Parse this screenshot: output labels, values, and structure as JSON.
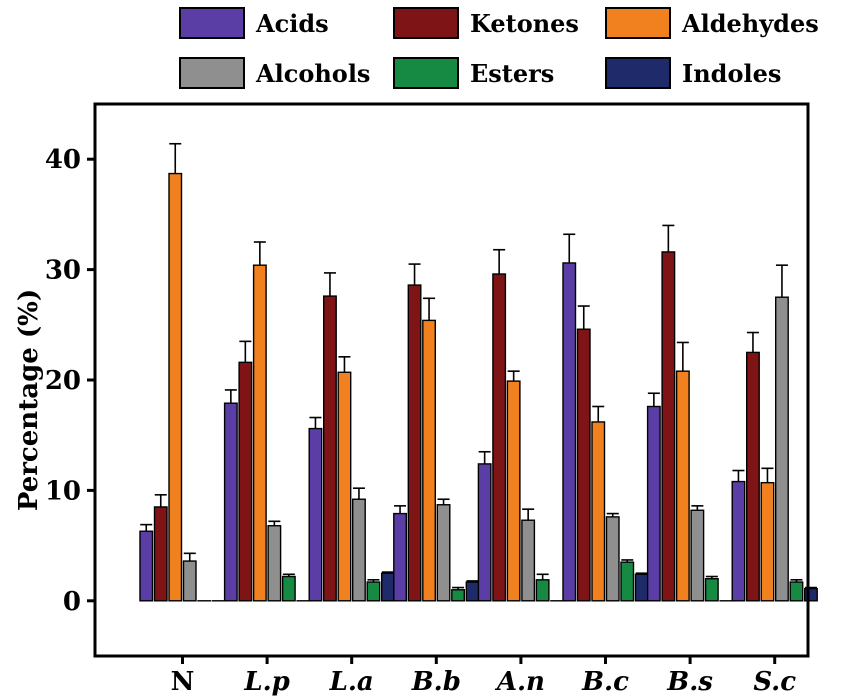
{
  "chart_data": {
    "type": "bar",
    "title": "",
    "xlabel": "",
    "ylabel": "Percentage (%)",
    "ylim": [
      -5,
      45
    ],
    "yticks": [
      0,
      10,
      20,
      30,
      40
    ],
    "grid": false,
    "legend_position": "top",
    "categories": [
      "N",
      "L.p",
      "L.a",
      "B.b",
      "A.n",
      "B.c",
      "B.s",
      "S.c"
    ],
    "series": [
      {
        "name": "Acids",
        "color": "#5b3ea5",
        "values": [
          6.3,
          17.9,
          15.6,
          7.9,
          12.4,
          30.6,
          17.6,
          10.8
        ],
        "errors": [
          0.6,
          1.2,
          1.0,
          0.7,
          1.1,
          2.6,
          1.2,
          1.0
        ]
      },
      {
        "name": "Ketones",
        "color": "#7f1416",
        "values": [
          8.5,
          21.6,
          27.6,
          28.6,
          29.6,
          24.6,
          31.6,
          22.5
        ],
        "errors": [
          1.1,
          1.9,
          2.1,
          1.9,
          2.2,
          2.1,
          2.4,
          1.8
        ]
      },
      {
        "name": "Aldehydes",
        "color": "#f0811e",
        "values": [
          38.7,
          30.4,
          20.7,
          25.4,
          19.9,
          16.2,
          20.8,
          10.7
        ],
        "errors": [
          2.7,
          2.1,
          1.4,
          2.0,
          0.9,
          1.4,
          2.6,
          1.3
        ]
      },
      {
        "name": "Alcohols",
        "color": "#8f8f8f",
        "values": [
          3.6,
          6.8,
          9.2,
          8.7,
          7.3,
          7.6,
          8.2,
          27.5
        ],
        "errors": [
          0.7,
          0.4,
          1.0,
          0.5,
          1.0,
          0.3,
          0.4,
          2.9
        ]
      },
      {
        "name": "Esters",
        "color": "#168a42",
        "values": [
          0.0,
          2.2,
          1.7,
          1.0,
          1.9,
          3.5,
          2.0,
          1.7
        ],
        "errors": [
          0.0,
          0.2,
          0.2,
          0.2,
          0.5,
          0.2,
          0.2,
          0.2
        ]
      },
      {
        "name": "Indoles",
        "color": "#1f2a6b",
        "values": [
          0.0,
          0.0,
          2.5,
          1.7,
          0.0,
          2.4,
          0.0,
          1.1
        ],
        "errors": [
          0.0,
          0.0,
          0.1,
          0.1,
          0.0,
          0.1,
          0.0,
          0.1
        ]
      }
    ]
  }
}
